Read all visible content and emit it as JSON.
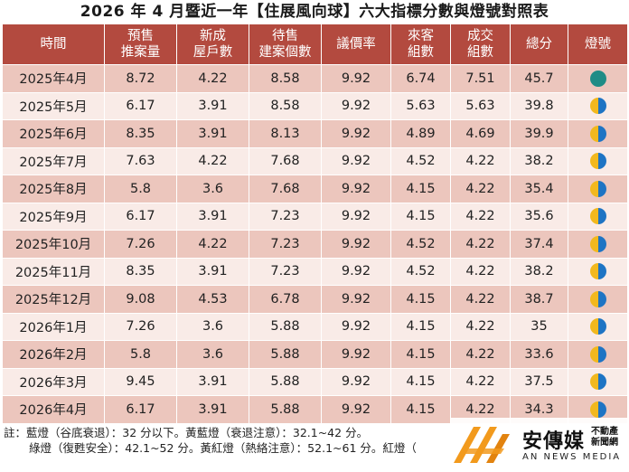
{
  "title": "2026 年 4 月暨近一年【住展風向球】六大指標分數與燈號對照表",
  "headers": [
    [
      "時間"
    ],
    [
      "預售",
      "推案量"
    ],
    [
      "新成",
      "屋戶數"
    ],
    [
      "待售",
      "建案個數"
    ],
    [
      "議價率"
    ],
    [
      "來客",
      "組數"
    ],
    [
      "成交",
      "組數"
    ],
    [
      "總分"
    ],
    [
      "燈號"
    ]
  ],
  "rows": [
    {
      "time": "2025年4月",
      "presale": "8.72",
      "new_units": "4.22",
      "unsold": "8.58",
      "bargain": "9.92",
      "visitors": "6.74",
      "deals": "7.51",
      "total": "45.7",
      "lamp": "green"
    },
    {
      "time": "2025年5月",
      "presale": "6.17",
      "new_units": "3.91",
      "unsold": "8.58",
      "bargain": "9.92",
      "visitors": "5.63",
      "deals": "5.63",
      "total": "39.8",
      "lamp": "yellow-blue"
    },
    {
      "time": "2025年6月",
      "presale": "8.35",
      "new_units": "3.91",
      "unsold": "8.13",
      "bargain": "9.92",
      "visitors": "4.89",
      "deals": "4.69",
      "total": "39.9",
      "lamp": "yellow-blue"
    },
    {
      "time": "2025年7月",
      "presale": "7.63",
      "new_units": "4.22",
      "unsold": "7.68",
      "bargain": "9.92",
      "visitors": "4.52",
      "deals": "4.22",
      "total": "38.2",
      "lamp": "yellow-blue"
    },
    {
      "time": "2025年8月",
      "presale": "5.8",
      "new_units": "3.6",
      "unsold": "7.68",
      "bargain": "9.92",
      "visitors": "4.15",
      "deals": "4.22",
      "total": "35.4",
      "lamp": "yellow-blue"
    },
    {
      "time": "2025年9月",
      "presale": "6.17",
      "new_units": "3.91",
      "unsold": "7.23",
      "bargain": "9.92",
      "visitors": "4.15",
      "deals": "4.22",
      "total": "35.6",
      "lamp": "yellow-blue"
    },
    {
      "time": "2025年10月",
      "presale": "7.26",
      "new_units": "4.22",
      "unsold": "7.23",
      "bargain": "9.92",
      "visitors": "4.52",
      "deals": "4.22",
      "total": "37.4",
      "lamp": "yellow-blue"
    },
    {
      "time": "2025年11月",
      "presale": "8.35",
      "new_units": "3.91",
      "unsold": "7.23",
      "bargain": "9.92",
      "visitors": "4.52",
      "deals": "4.22",
      "total": "38.2",
      "lamp": "yellow-blue"
    },
    {
      "time": "2025年12月",
      "presale": "9.08",
      "new_units": "4.53",
      "unsold": "6.78",
      "bargain": "9.92",
      "visitors": "4.15",
      "deals": "4.22",
      "total": "38.7",
      "lamp": "yellow-blue"
    },
    {
      "time": "2026年1月",
      "presale": "7.26",
      "new_units": "3.6",
      "unsold": "5.88",
      "bargain": "9.92",
      "visitors": "4.15",
      "deals": "4.22",
      "total": "35",
      "lamp": "yellow-blue"
    },
    {
      "time": "2026年2月",
      "presale": "5.8",
      "new_units": "3.6",
      "unsold": "5.88",
      "bargain": "9.92",
      "visitors": "4.15",
      "deals": "4.22",
      "total": "33.6",
      "lamp": "yellow-blue"
    },
    {
      "time": "2026年3月",
      "presale": "9.45",
      "new_units": "3.91",
      "unsold": "5.88",
      "bargain": "9.92",
      "visitors": "4.15",
      "deals": "4.22",
      "total": "37.5",
      "lamp": "yellow-blue"
    },
    {
      "time": "2026年4月",
      "presale": "6.17",
      "new_units": "3.91",
      "unsold": "5.88",
      "bargain": "9.92",
      "visitors": "4.15",
      "deals": "4.22",
      "total": "34.3",
      "lamp": "yellow-blue"
    }
  ],
  "notes": {
    "line1": "註：藍燈（谷底衰退）：32 分以下。黃藍燈（衰退注意）：32.1~42 分。",
    "line2": "綠燈（復甦安全）：42.1~52 分。黃紅燈（熱絡注意）：52.1~61 分。紅燈（"
  },
  "logo": {
    "brand": "安傳媒",
    "side_line1": "不動產",
    "side_line2": "新聞網",
    "english": "AN NEWS MEDIA"
  },
  "colors": {
    "header_bg": "#b34a3f",
    "row_dark": "#ecc6bd",
    "row_light": "#f9ebe7",
    "lamp_green": "#1f8c86",
    "lamp_yellow": "#f2b81e",
    "lamp_blue": "#1e74c4",
    "logo_orange": "#f29a1d"
  }
}
